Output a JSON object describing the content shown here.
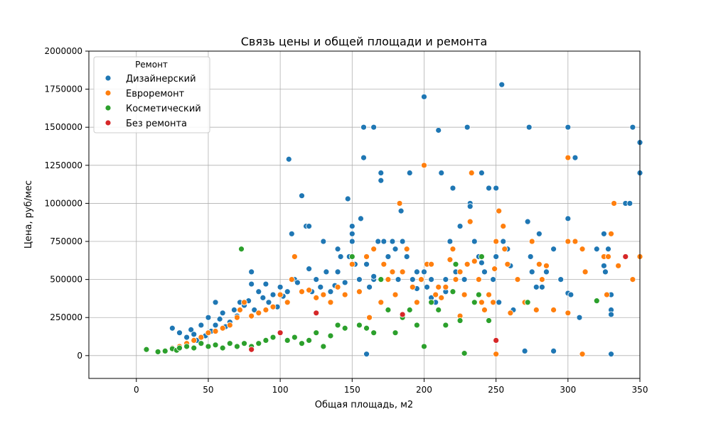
{
  "chart_data": {
    "type": "scatter",
    "title": "Связь цены и общей площади и ремонта",
    "xlabel": "Общая площадь, м2",
    "ylabel": "Цена, руб/мес",
    "xlim": [
      -33,
      350
    ],
    "ylim": [
      -150000,
      2000000
    ],
    "xticks": [
      0,
      50,
      100,
      150,
      200,
      250,
      300,
      350
    ],
    "yticks": [
      0,
      250000,
      500000,
      750000,
      1000000,
      1250000,
      1500000,
      1750000,
      2000000
    ],
    "grid": true,
    "legend": {
      "title": "Ремонт",
      "placement": "top-left"
    },
    "series": [
      {
        "name": "Дизайнерский",
        "color": "#1f77b4",
        "points": [
          [
            25,
            180000
          ],
          [
            30,
            150000
          ],
          [
            35,
            120000
          ],
          [
            38,
            170000
          ],
          [
            40,
            140000
          ],
          [
            42,
            100000
          ],
          [
            45,
            200000
          ],
          [
            48,
            130000
          ],
          [
            50,
            250000
          ],
          [
            52,
            160000
          ],
          [
            55,
            200000
          ],
          [
            55,
            350000
          ],
          [
            58,
            240000
          ],
          [
            60,
            280000
          ],
          [
            62,
            190000
          ],
          [
            65,
            220000
          ],
          [
            68,
            300000
          ],
          [
            70,
            260000
          ],
          [
            72,
            350000
          ],
          [
            75,
            330000
          ],
          [
            78,
            360000
          ],
          [
            80,
            470000
          ],
          [
            80,
            550000
          ],
          [
            82,
            300000
          ],
          [
            85,
            420000
          ],
          [
            88,
            380000
          ],
          [
            90,
            470000
          ],
          [
            92,
            350000
          ],
          [
            95,
            400000
          ],
          [
            98,
            320000
          ],
          [
            100,
            450000
          ],
          [
            102,
            390000
          ],
          [
            105,
            420000
          ],
          [
            106,
            1290000
          ],
          [
            108,
            800000
          ],
          [
            110,
            500000
          ],
          [
            112,
            480000
          ],
          [
            115,
            1050000
          ],
          [
            118,
            850000
          ],
          [
            120,
            850000
          ],
          [
            120,
            570000
          ],
          [
            122,
            420000
          ],
          [
            125,
            500000
          ],
          [
            128,
            450000
          ],
          [
            130,
            750000
          ],
          [
            132,
            550000
          ],
          [
            135,
            420000
          ],
          [
            138,
            460000
          ],
          [
            140,
            700000
          ],
          [
            140,
            550000
          ],
          [
            142,
            650000
          ],
          [
            145,
            480000
          ],
          [
            147,
            1030000
          ],
          [
            148,
            650000
          ],
          [
            150,
            850000
          ],
          [
            150,
            800000
          ],
          [
            150,
            750000
          ],
          [
            152,
            600000
          ],
          [
            155,
            500000
          ],
          [
            156,
            900000
          ],
          [
            158,
            1500000
          ],
          [
            158,
            1300000
          ],
          [
            160,
            600000
          ],
          [
            162,
            450000
          ],
          [
            165,
            1500000
          ],
          [
            165,
            500000
          ],
          [
            168,
            750000
          ],
          [
            170,
            1200000
          ],
          [
            170,
            1150000
          ],
          [
            172,
            750000
          ],
          [
            175,
            650000
          ],
          [
            178,
            750000
          ],
          [
            180,
            700000
          ],
          [
            182,
            500000
          ],
          [
            184,
            950000
          ],
          [
            185,
            750000
          ],
          [
            188,
            650000
          ],
          [
            190,
            1200000
          ],
          [
            192,
            500000
          ],
          [
            195,
            550000
          ],
          [
            200,
            1700000
          ],
          [
            200,
            550000
          ],
          [
            202,
            450000
          ],
          [
            205,
            500000
          ],
          [
            208,
            350000
          ],
          [
            210,
            1480000
          ],
          [
            212,
            1200000
          ],
          [
            215,
            500000
          ],
          [
            218,
            750000
          ],
          [
            220,
            1100000
          ],
          [
            222,
            550000
          ],
          [
            225,
            850000
          ],
          [
            228,
            500000
          ],
          [
            230,
            1500000
          ],
          [
            232,
            1000000
          ],
          [
            232,
            980000
          ],
          [
            235,
            750000
          ],
          [
            238,
            650000
          ],
          [
            240,
            1200000
          ],
          [
            242,
            550000
          ],
          [
            245,
            1100000
          ],
          [
            248,
            500000
          ],
          [
            250,
            1100000
          ],
          [
            250,
            750000
          ],
          [
            250,
            650000
          ],
          [
            252,
            350000
          ],
          [
            254,
            1780000
          ],
          [
            255,
            750000
          ],
          [
            258,
            700000
          ],
          [
            260,
            590000
          ],
          [
            262,
            300000
          ],
          [
            270,
            30000
          ],
          [
            272,
            880000
          ],
          [
            273,
            1500000
          ],
          [
            274,
            650000
          ],
          [
            275,
            550000
          ],
          [
            278,
            450000
          ],
          [
            280,
            800000
          ],
          [
            282,
            450000
          ],
          [
            285,
            550000
          ],
          [
            290,
            30000
          ],
          [
            290,
            700000
          ],
          [
            295,
            500000
          ],
          [
            300,
            1500000
          ],
          [
            300,
            900000
          ],
          [
            300,
            410000
          ],
          [
            302,
            400000
          ],
          [
            305,
            1300000
          ],
          [
            308,
            250000
          ],
          [
            310,
            700000
          ],
          [
            320,
            700000
          ],
          [
            325,
            800000
          ],
          [
            325,
            590000
          ],
          [
            326,
            550000
          ],
          [
            328,
            700000
          ],
          [
            330,
            400000
          ],
          [
            330,
            300000
          ],
          [
            330,
            10000
          ],
          [
            330,
            270000
          ],
          [
            340,
            1000000
          ],
          [
            343,
            1000000
          ],
          [
            345,
            1500000
          ],
          [
            350,
            1400000
          ],
          [
            350,
            1200000
          ],
          [
            160,
            10000
          ],
          [
            165,
            520000
          ],
          [
            195,
            440000
          ],
          [
            215,
            420000
          ],
          [
            240,
            610000
          ],
          [
            205,
            380000
          ]
        ]
      },
      {
        "name": "Евроремонт",
        "color": "#ff7f0e",
        "points": [
          [
            20,
            30000
          ],
          [
            25,
            50000
          ],
          [
            30,
            60000
          ],
          [
            35,
            80000
          ],
          [
            40,
            100000
          ],
          [
            45,
            120000
          ],
          [
            50,
            150000
          ],
          [
            55,
            160000
          ],
          [
            60,
            180000
          ],
          [
            65,
            200000
          ],
          [
            70,
            250000
          ],
          [
            72,
            300000
          ],
          [
            75,
            350000
          ],
          [
            80,
            260000
          ],
          [
            85,
            280000
          ],
          [
            90,
            300000
          ],
          [
            95,
            320000
          ],
          [
            100,
            400000
          ],
          [
            105,
            350000
          ],
          [
            108,
            500000
          ],
          [
            110,
            650000
          ],
          [
            115,
            420000
          ],
          [
            120,
            430000
          ],
          [
            125,
            380000
          ],
          [
            130,
            400000
          ],
          [
            135,
            350000
          ],
          [
            140,
            450000
          ],
          [
            145,
            400000
          ],
          [
            150,
            600000
          ],
          [
            155,
            420000
          ],
          [
            160,
            650000
          ],
          [
            162,
            250000
          ],
          [
            165,
            700000
          ],
          [
            170,
            350000
          ],
          [
            172,
            600000
          ],
          [
            175,
            500000
          ],
          [
            178,
            550000
          ],
          [
            180,
            400000
          ],
          [
            183,
            1000000
          ],
          [
            185,
            550000
          ],
          [
            188,
            700000
          ],
          [
            190,
            300000
          ],
          [
            192,
            450000
          ],
          [
            195,
            350000
          ],
          [
            198,
            500000
          ],
          [
            200,
            1250000
          ],
          [
            202,
            600000
          ],
          [
            205,
            600000
          ],
          [
            208,
            400000
          ],
          [
            210,
            450000
          ],
          [
            212,
            380000
          ],
          [
            215,
            450000
          ],
          [
            218,
            630000
          ],
          [
            220,
            700000
          ],
          [
            222,
            500000
          ],
          [
            225,
            550000
          ],
          [
            228,
            400000
          ],
          [
            230,
            600000
          ],
          [
            232,
            880000
          ],
          [
            233,
            1200000
          ],
          [
            235,
            620000
          ],
          [
            238,
            500000
          ],
          [
            240,
            350000
          ],
          [
            242,
            300000
          ],
          [
            245,
            400000
          ],
          [
            248,
            350000
          ],
          [
            249,
            570000
          ],
          [
            250,
            10000
          ],
          [
            250,
            750000
          ],
          [
            252,
            950000
          ],
          [
            255,
            850000
          ],
          [
            256,
            700000
          ],
          [
            258,
            600000
          ],
          [
            260,
            280000
          ],
          [
            265,
            500000
          ],
          [
            270,
            350000
          ],
          [
            272,
            350000
          ],
          [
            275,
            750000
          ],
          [
            278,
            300000
          ],
          [
            280,
            600000
          ],
          [
            282,
            500000
          ],
          [
            285,
            590000
          ],
          [
            290,
            300000
          ],
          [
            300,
            1300000
          ],
          [
            300,
            750000
          ],
          [
            300,
            280000
          ],
          [
            305,
            750000
          ],
          [
            310,
            700000
          ],
          [
            312,
            550000
          ],
          [
            325,
            650000
          ],
          [
            327,
            400000
          ],
          [
            328,
            650000
          ],
          [
            330,
            800000
          ],
          [
            332,
            1000000
          ],
          [
            335,
            590000
          ],
          [
            345,
            500000
          ],
          [
            350,
            650000
          ],
          [
            310,
            10000
          ],
          [
            185,
            260000
          ],
          [
            225,
            260000
          ]
        ]
      },
      {
        "name": "Косметический",
        "color": "#2ca02c",
        "points": [
          [
            7,
            40000
          ],
          [
            15,
            25000
          ],
          [
            20,
            30000
          ],
          [
            25,
            45000
          ],
          [
            28,
            35000
          ],
          [
            30,
            50000
          ],
          [
            35,
            60000
          ],
          [
            40,
            50000
          ],
          [
            45,
            80000
          ],
          [
            50,
            60000
          ],
          [
            55,
            70000
          ],
          [
            60,
            50000
          ],
          [
            65,
            80000
          ],
          [
            70,
            60000
          ],
          [
            73,
            700000
          ],
          [
            75,
            80000
          ],
          [
            80,
            60000
          ],
          [
            85,
            80000
          ],
          [
            90,
            100000
          ],
          [
            95,
            120000
          ],
          [
            100,
            150000
          ],
          [
            105,
            100000
          ],
          [
            110,
            120000
          ],
          [
            115,
            80000
          ],
          [
            120,
            100000
          ],
          [
            125,
            150000
          ],
          [
            130,
            60000
          ],
          [
            135,
            130000
          ],
          [
            140,
            200000
          ],
          [
            145,
            180000
          ],
          [
            150,
            650000
          ],
          [
            155,
            200000
          ],
          [
            160,
            180000
          ],
          [
            165,
            150000
          ],
          [
            170,
            500000
          ],
          [
            175,
            300000
          ],
          [
            180,
            150000
          ],
          [
            185,
            250000
          ],
          [
            190,
            300000
          ],
          [
            195,
            200000
          ],
          [
            200,
            60000
          ],
          [
            205,
            350000
          ],
          [
            210,
            300000
          ],
          [
            215,
            200000
          ],
          [
            220,
            420000
          ],
          [
            222,
            600000
          ],
          [
            225,
            230000
          ],
          [
            228,
            15000
          ],
          [
            235,
            350000
          ],
          [
            238,
            400000
          ],
          [
            240,
            650000
          ],
          [
            245,
            230000
          ],
          [
            272,
            350000
          ],
          [
            320,
            360000
          ]
        ]
      },
      {
        "name": "Без ремонта",
        "color": "#d62728",
        "points": [
          [
            80,
            40000
          ],
          [
            100,
            150000
          ],
          [
            125,
            280000
          ],
          [
            185,
            270000
          ],
          [
            250,
            100000
          ],
          [
            340,
            650000
          ]
        ]
      }
    ]
  }
}
